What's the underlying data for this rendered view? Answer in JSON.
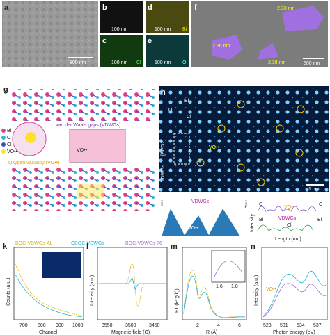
{
  "panels": {
    "a": {
      "label": "a",
      "scale": "800 nm"
    },
    "b": {
      "label": "b",
      "scale": "100 nm"
    },
    "c": {
      "label": "c",
      "scale": "100 nm",
      "element": "Cl"
    },
    "d": {
      "label": "d",
      "scale": "100 nm",
      "element": "Bi"
    },
    "e": {
      "label": "e",
      "scale": "100 nm",
      "element": "O"
    },
    "f": {
      "label": "f",
      "scale": "500 nm",
      "heights": [
        "2.33 nm",
        "2.36 nm",
        "2.38 nm"
      ]
    },
    "g": {
      "label": "g",
      "legend": [
        "Bi",
        "O",
        "Cl",
        "VO••"
      ],
      "gap": "van der Waals gaps (VDWGs)",
      "vacancy": "Oxygen vacancy (VO••)",
      "inset": "VO••"
    },
    "h": {
      "label": "h",
      "atoms": [
        "Bi",
        "O",
        "Cl"
      ],
      "vac": "VO••",
      "side": "VDWGs",
      "layer": "[Bi2O2]",
      "scale": "1 nm"
    },
    "i": {
      "label": "i",
      "gap": "VDWGs",
      "vac": "VO••"
    },
    "j": {
      "label": "j",
      "top": [
        "O",
        "O"
      ],
      "vac": "VO••",
      "bottom": [
        "Bi",
        "Cl",
        "Bi"
      ],
      "gap": "VDWGs",
      "ylabel": "Intensity",
      "xlabel": "Length (nm)"
    },
    "k": {
      "label": "k",
      "legend": [
        "BOC-VDWGs-AL",
        "CBOC-VDWGs",
        "BOC-VDWGs-76"
      ],
      "ylabel": "Counts (a.u.)",
      "xlabel": "Channel",
      "xticks": [
        "700",
        "800",
        "900",
        "1000"
      ]
    },
    "l": {
      "label": "l",
      "ylabel": "Intensity (a.u.)",
      "xlabel": "Magnetic field (G)",
      "xticks": [
        "3550",
        "3500",
        "3450"
      ]
    },
    "m": {
      "label": "m",
      "ylabel": "FT (k² χ(k))",
      "xlabel": "R (Å)",
      "xticks": [
        "2",
        "4",
        "6"
      ],
      "inset": [
        "1.6",
        "1.8"
      ]
    },
    "n": {
      "label": "n",
      "ylabel": "Intensity (a.u.)",
      "xlabel": "Photon energy (eV)",
      "xticks": [
        "528",
        "531",
        "534",
        "537"
      ],
      "vac": "VO••"
    }
  }
}
